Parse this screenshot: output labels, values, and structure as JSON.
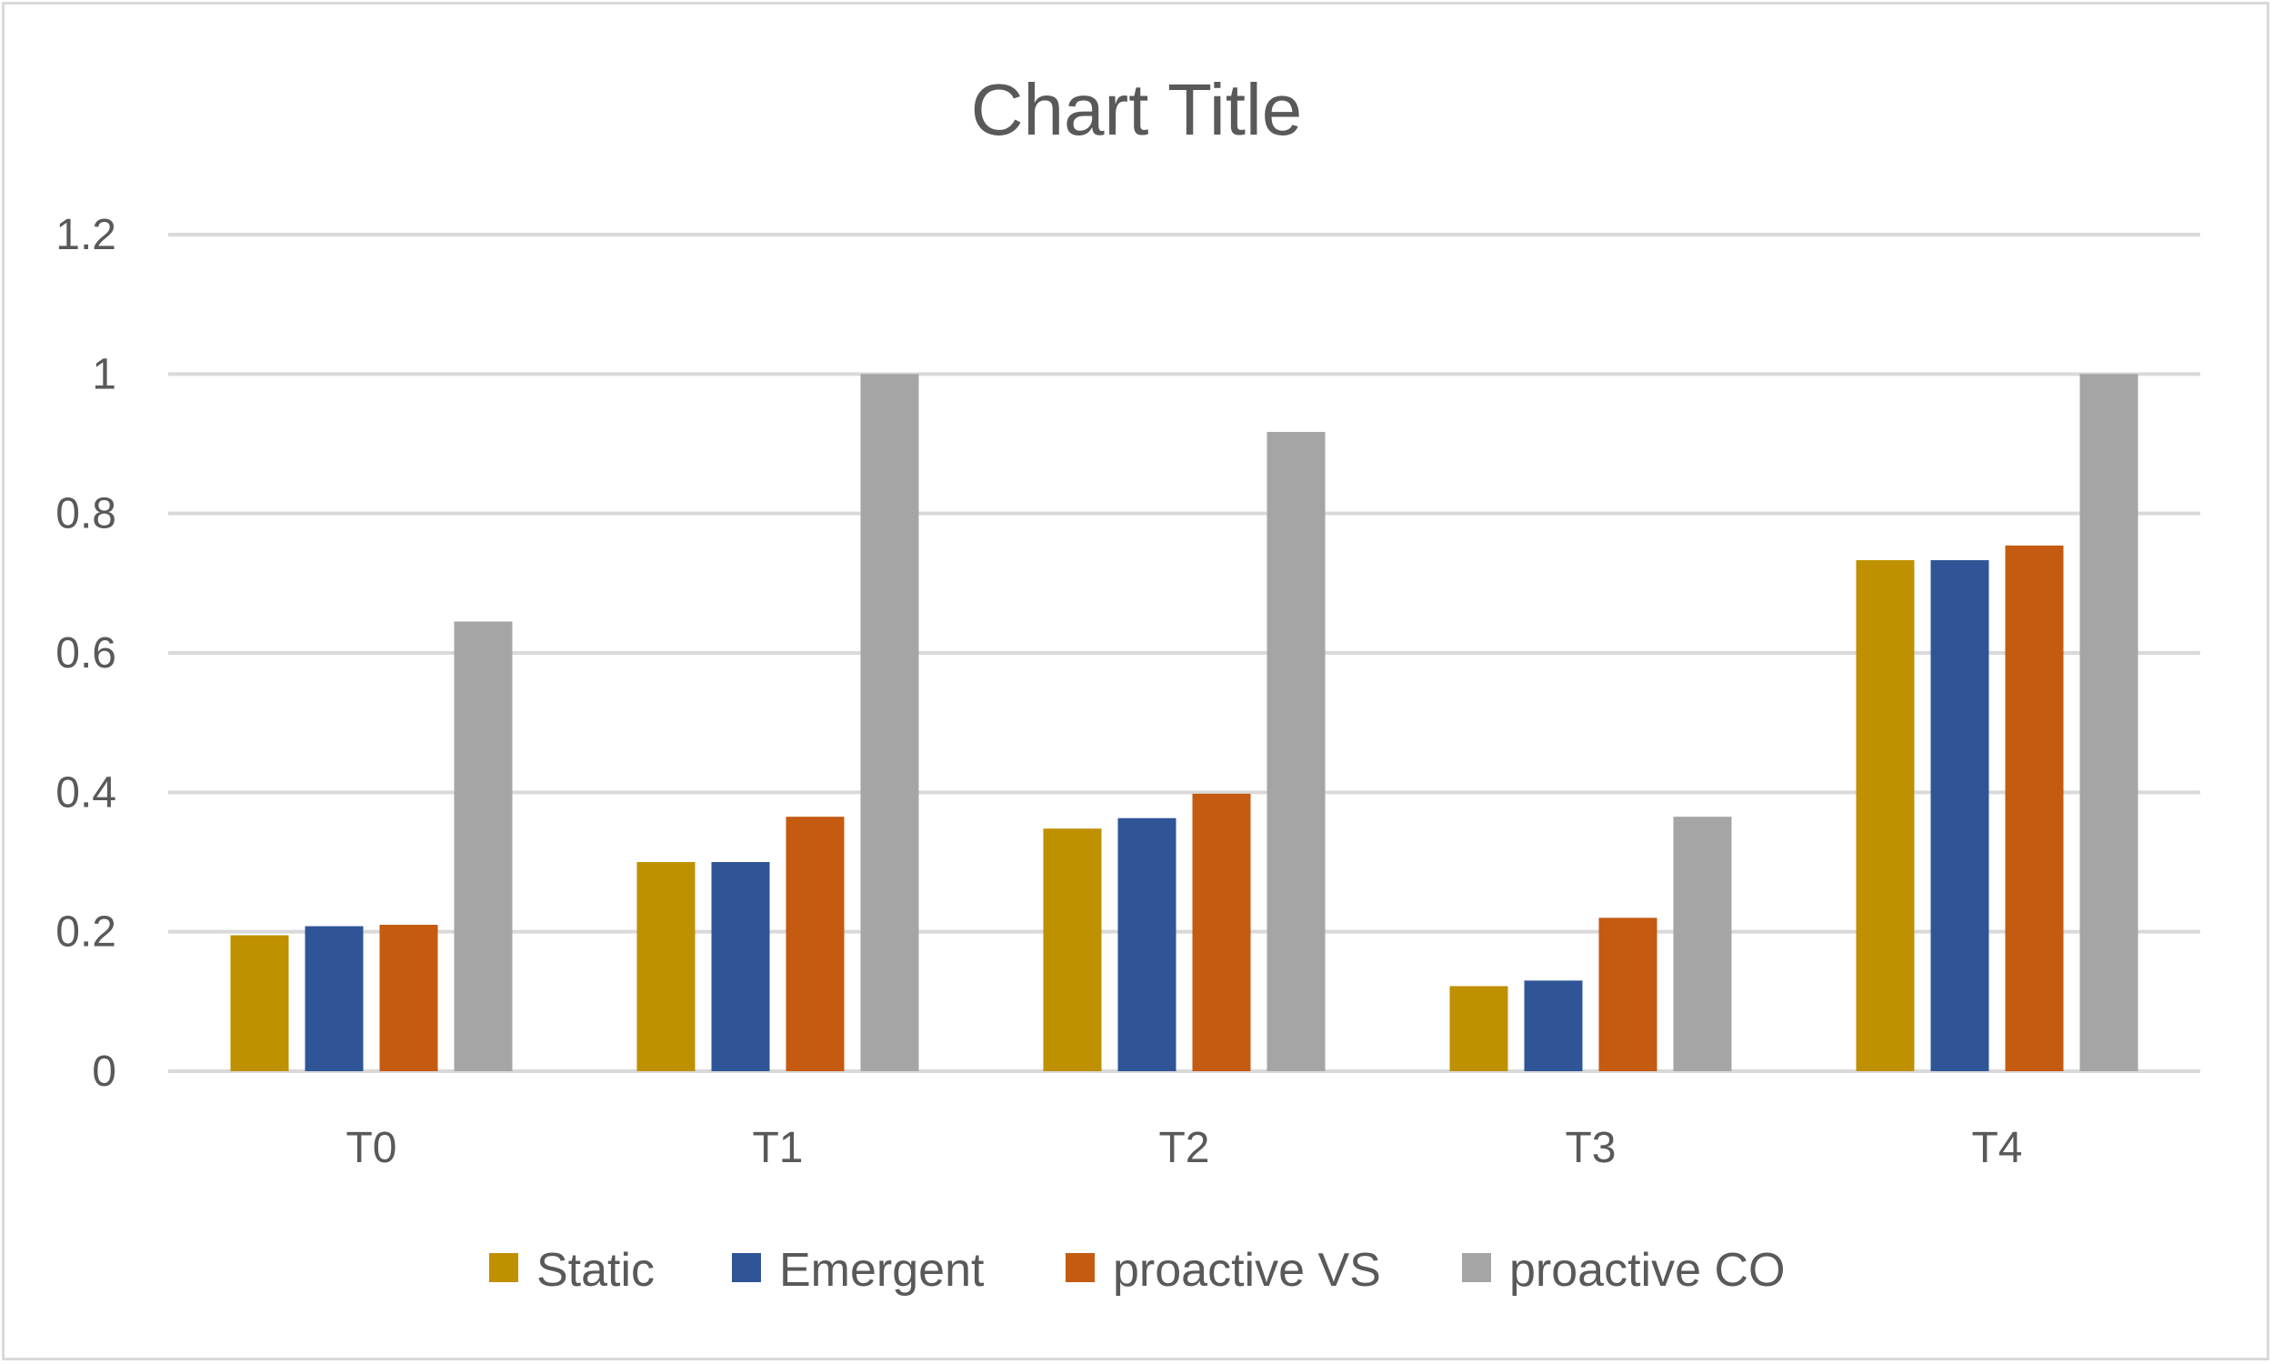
{
  "chart_data": {
    "type": "bar",
    "title": "Chart Title",
    "xlabel": "",
    "ylabel": "",
    "categories": [
      "T0",
      "T1",
      "T2",
      "T3",
      "T4"
    ],
    "ylim": [
      0,
      1.2
    ],
    "yticks": [
      "0",
      "0.2",
      "0.4",
      "0.6",
      "0.8",
      "1",
      "1.2"
    ],
    "grid": true,
    "legend_position": "bottom",
    "series": [
      {
        "name": "Static",
        "color": "#bf9000",
        "values": [
          0.195,
          0.3,
          0.348,
          0.122,
          0.733
        ]
      },
      {
        "name": "Emergent",
        "color": "#2f5597",
        "values": [
          0.208,
          0.3,
          0.363,
          0.13,
          0.733
        ]
      },
      {
        "name": "proactive VS",
        "color": "#c55a11",
        "values": [
          0.21,
          0.365,
          0.398,
          0.22,
          0.754
        ]
      },
      {
        "name": "proactive CO",
        "color": "#a5a5a5",
        "values": [
          0.645,
          1.0,
          0.917,
          0.365,
          1.0
        ]
      }
    ]
  }
}
